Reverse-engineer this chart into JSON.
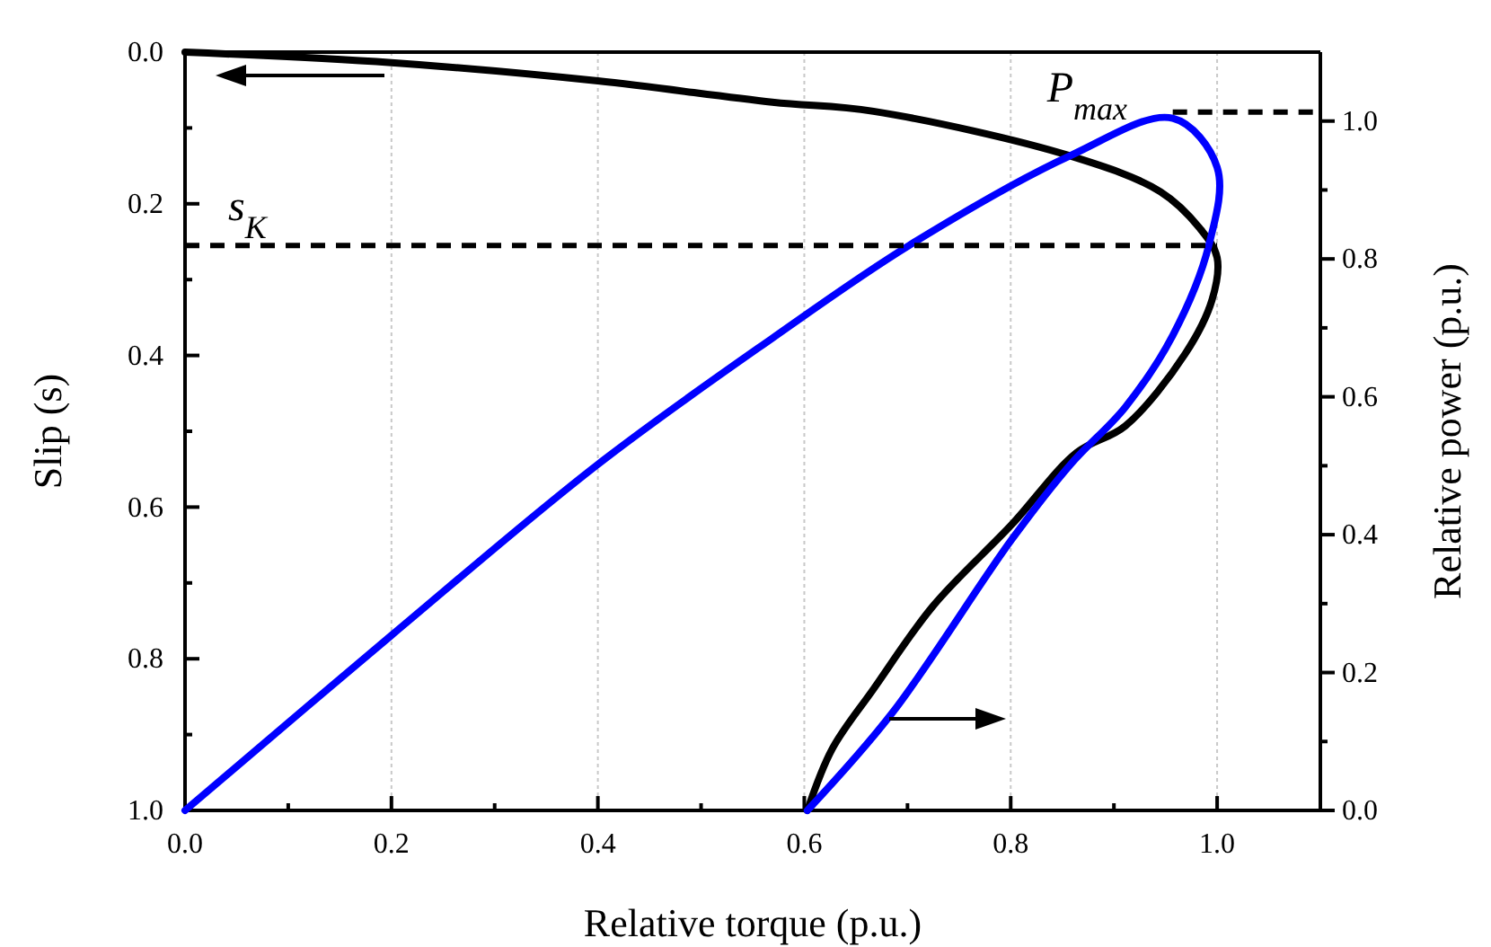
{
  "chart_data": {
    "type": "line",
    "xlabel": "Relative torque (p.u.)",
    "ylabel": "Slip (s)",
    "y2label": "Relative power (p.u.)",
    "series": [
      {
        "color": "#000000",
        "axis": "y",
        "x": [
          0,
          0.2,
          0.4,
          0.569,
          0.667,
          0.858,
          0.945,
          0.983,
          1.0,
          0.995,
          0.969,
          0.911,
          0.864,
          0.801,
          0.725,
          0.667,
          0.627,
          0.603
        ],
        "values": [
          0,
          0.014,
          0.038,
          0.066,
          0.078,
          0.137,
          0.184,
          0.232,
          0.271,
          0.327,
          0.398,
          0.493,
          0.528,
          0.623,
          0.73,
          0.84,
          0.919,
          1.0
        ]
      },
      {
        "color": "#0000ff",
        "axis": "y2",
        "x": [
          0,
          0.2,
          0.4,
          0.569,
          0.702,
          0.858,
          0.957,
          1.0,
          0.992,
          0.957,
          0.911,
          0.858,
          0.801,
          0.685,
          0.603
        ],
        "values": [
          0,
          0.254,
          0.502,
          0.685,
          0.82,
          0.95,
          1.004,
          0.933,
          0.82,
          0.689,
          0.585,
          0.502,
          0.393,
          0.141,
          0
        ]
      }
    ],
    "xlim": [
      0,
      1.1
    ],
    "xticks": [
      {
        "value": 0,
        "label": "0.0"
      },
      {
        "value": 0.1,
        "label": null
      },
      {
        "value": 0.2,
        "label": "0.2"
      },
      {
        "value": 0.3,
        "label": null
      },
      {
        "value": 0.4,
        "label": "0.4"
      },
      {
        "value": 0.5,
        "label": null
      },
      {
        "value": 0.6,
        "label": "0.6"
      },
      {
        "value": 0.7,
        "label": null
      },
      {
        "value": 0.8,
        "label": "0.8"
      },
      {
        "value": 0.9,
        "label": null
      },
      {
        "value": 1.0,
        "label": "1.0"
      }
    ],
    "ylim": [
      1,
      0
    ],
    "yticks": [
      {
        "value": 0,
        "label": "0.0"
      },
      {
        "value": 0.1,
        "label": null
      },
      {
        "value": 0.2,
        "label": "0.2"
      },
      {
        "value": 0.3,
        "label": null
      },
      {
        "value": 0.4,
        "label": "0.4"
      },
      {
        "value": 0.5,
        "label": null
      },
      {
        "value": 0.6,
        "label": "0.6"
      },
      {
        "value": 0.7,
        "label": null
      },
      {
        "value": 0.8,
        "label": "0.8"
      },
      {
        "value": 0.9,
        "label": null
      },
      {
        "value": 1.0,
        "label": "1.0"
      }
    ],
    "y2lim": [
      0,
      1.1
    ],
    "y2ticks": [
      {
        "value": 0,
        "label": "0.0"
      },
      {
        "value": 0.1,
        "label": null
      },
      {
        "value": 0.2,
        "label": "0.2"
      },
      {
        "value": 0.3,
        "label": null
      },
      {
        "value": 0.4,
        "label": "0.4"
      },
      {
        "value": 0.5,
        "label": null
      },
      {
        "value": 0.6,
        "label": "0.6"
      },
      {
        "value": 0.7,
        "label": null
      },
      {
        "value": 0.8,
        "label": "0.8"
      },
      {
        "value": 0.9,
        "label": null
      },
      {
        "value": 1.0,
        "label": "1.0"
      }
    ],
    "ref_lines": [
      {
        "axis": "y",
        "value": 0.255,
        "label": "s$_{K}$",
        "color": "#000000",
        "line_style": "dashed"
      },
      {
        "axis": "y2",
        "value": 1.013,
        "label": "P$_{max}$",
        "color": "#000000",
        "line_style": "dashed"
      }
    ],
    "grid": "x",
    "marker": "none",
    "line_style": "solid"
  }
}
